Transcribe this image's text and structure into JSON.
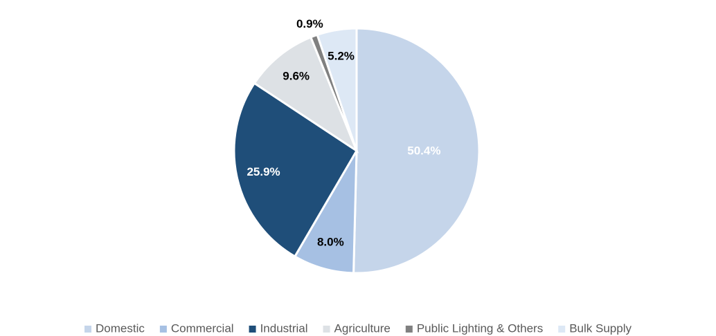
{
  "chart_data": {
    "type": "pie",
    "categories": [
      "Domestic",
      "Commercial",
      "Industrial",
      "Agriculture",
      "Public Lighting & Others",
      "Bulk Supply"
    ],
    "values": [
      50.4,
      8.0,
      25.9,
      9.6,
      0.9,
      5.2
    ],
    "value_labels": [
      "50.4%",
      "8.0%",
      "25.9%",
      "9.6%",
      "0.9%",
      "5.2%"
    ],
    "colors": [
      "#c5d5ea",
      "#a6c0e3",
      "#1f4e79",
      "#dde1e5",
      "#808080",
      "#dde8f5"
    ],
    "value_label_colors": [
      "#ffffff",
      "#000000",
      "#ffffff",
      "#000000",
      "#000000",
      "#000000"
    ],
    "legend": "bottom"
  }
}
